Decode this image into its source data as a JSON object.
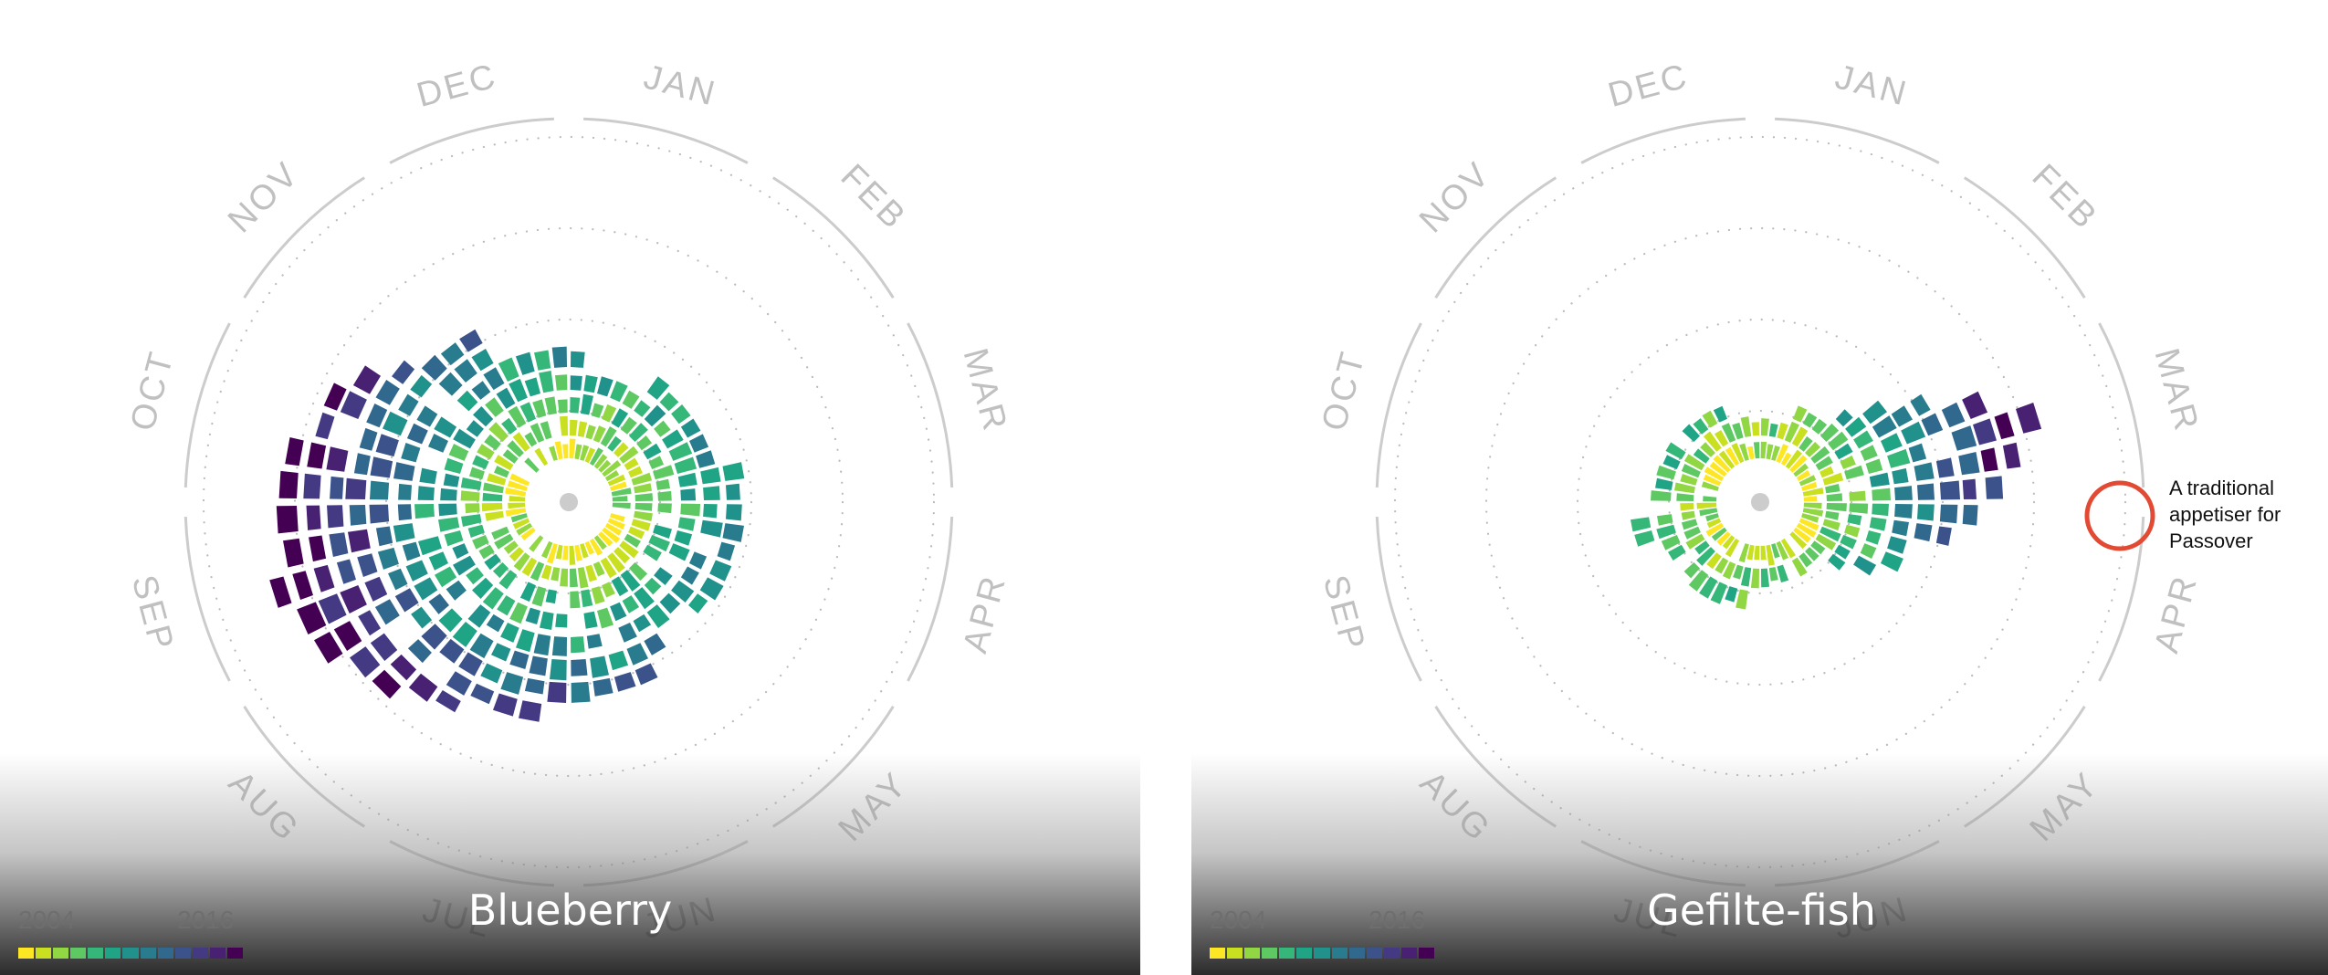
{
  "chart_data": [
    {
      "type": "radial-calendar",
      "title": "Blueberry",
      "months": [
        "JAN",
        "FEB",
        "MAR",
        "APR",
        "MAY",
        "JUN",
        "JUL",
        "AUG",
        "SEP",
        "OCT",
        "NOV",
        "DEC"
      ],
      "legend": {
        "start": "2004",
        "end": "2016"
      },
      "series_profile": [
        0.34,
        0.4,
        0.46,
        0.5,
        0.53,
        0.56,
        0.66,
        0.84,
        1.0,
        0.9,
        0.66,
        0.46
      ]
    },
    {
      "type": "radial-calendar",
      "title": "Gefilte-fish",
      "months": [
        "JAN",
        "FEB",
        "MAR",
        "APR",
        "MAY",
        "JUN",
        "JUL",
        "AUG",
        "SEP",
        "OCT",
        "NOV",
        "DEC"
      ],
      "legend": {
        "start": "2004",
        "end": "2016"
      },
      "series_profile": [
        0.18,
        0.3,
        0.95,
        0.5,
        0.2,
        0.18,
        0.22,
        0.24,
        0.3,
        0.25,
        0.22,
        0.2
      ],
      "annotation": "A traditional appetiser for Passover"
    }
  ],
  "colors": {
    "ring": "#cccccc",
    "dots": "#bbbbbb",
    "callout": "#e34a33",
    "viridis": [
      "#fde725",
      "#c8e020",
      "#90d743",
      "#5ec962",
      "#35b779",
      "#20a486",
      "#21918c",
      "#287c8e",
      "#31688e",
      "#3b528b",
      "#443983",
      "#482173",
      "#440154"
    ]
  }
}
